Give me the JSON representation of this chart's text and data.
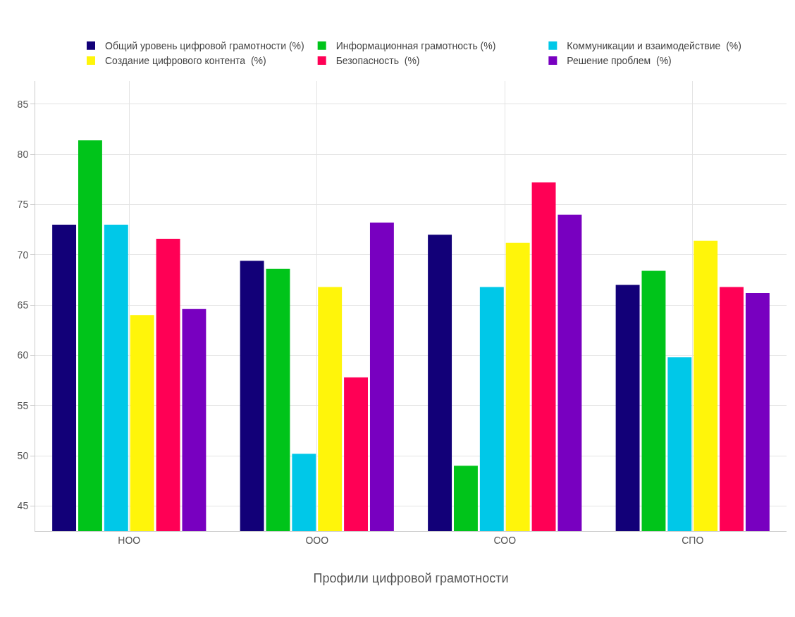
{
  "chart_data": {
    "type": "bar",
    "xlabel": "Профили цифровой грамотности",
    "categories": [
      "НОО",
      "ООО",
      "СОО",
      "СПО"
    ],
    "series": [
      {
        "name": "Общий уровень цифровой грамотности (%)",
        "color": "#120078",
        "values": [
          73,
          69.4,
          72,
          67
        ]
      },
      {
        "name": "Информационная грамотность (%)",
        "color": "#00c41a",
        "values": [
          81.4,
          68.6,
          49,
          68.4
        ]
      },
      {
        "name": "Коммуникации и взаимодействие  (%)",
        "color": "#00c8e8",
        "values": [
          73,
          50.2,
          66.8,
          59.8
        ]
      },
      {
        "name": "Создание цифрового контента  (%)",
        "color": "#fff50a",
        "values": [
          64,
          66.8,
          71.2,
          71.4
        ]
      },
      {
        "name": "Безопасность  (%)",
        "color": "#ff0055",
        "values": [
          71.6,
          57.8,
          77.2,
          66.8
        ]
      },
      {
        "name": "Решение проблем  (%)",
        "color": "#7800c0",
        "values": [
          64.6,
          73.2,
          74,
          66.2
        ]
      }
    ],
    "ylim": [
      42.5,
      87.3
    ],
    "yticks": [
      45,
      50,
      55,
      60,
      65,
      70,
      75,
      80,
      85
    ],
    "grid": true,
    "legend": "top"
  }
}
